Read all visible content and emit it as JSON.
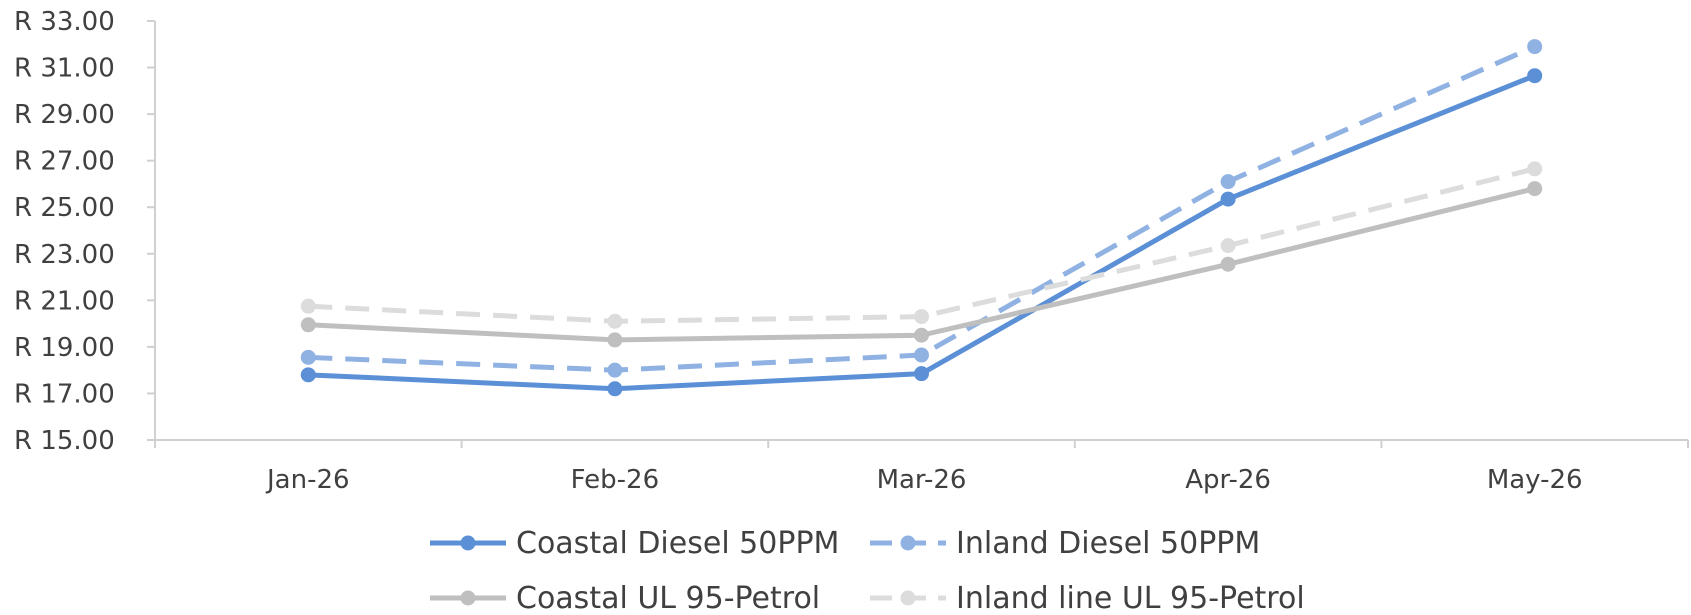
{
  "chart_data": {
    "type": "line",
    "title": "",
    "xlabel": "",
    "ylabel": "",
    "categories": [
      "Jan-26",
      "Feb-26",
      "Mar-26",
      "Apr-26",
      "May-26"
    ],
    "ylim": [
      15,
      33
    ],
    "y_ticks": [
      15,
      17,
      19,
      21,
      23,
      25,
      27,
      29,
      31,
      33
    ],
    "y_tick_labels": [
      "R  15.00",
      "R  17.00",
      "R  19.00",
      "R  21.00",
      "R  23.00",
      "R  25.00",
      "R  27.00",
      "R  29.00",
      "R  31.00",
      "R  33.00"
    ],
    "grid": false,
    "legend_position": "bottom",
    "series": [
      {
        "name": "Coastal Diesel 50PPM",
        "values": [
          17.8,
          17.2,
          17.85,
          25.35,
          30.65
        ],
        "color": "#5B8FD6",
        "dashed": false
      },
      {
        "name": "Inland Diesel 50PPM",
        "values": [
          18.55,
          18.0,
          18.65,
          26.1,
          31.9
        ],
        "color": "#8FB2E3",
        "dashed": true
      },
      {
        "name": "Coastal UL 95-Petrol",
        "values": [
          19.95,
          19.3,
          19.5,
          22.55,
          25.8
        ],
        "color": "#BFBFBF",
        "dashed": false
      },
      {
        "name": "Inland line UL 95-Petrol",
        "values": [
          20.75,
          20.1,
          20.3,
          23.35,
          26.65
        ],
        "color": "#DCDCDC",
        "dashed": true
      }
    ]
  }
}
